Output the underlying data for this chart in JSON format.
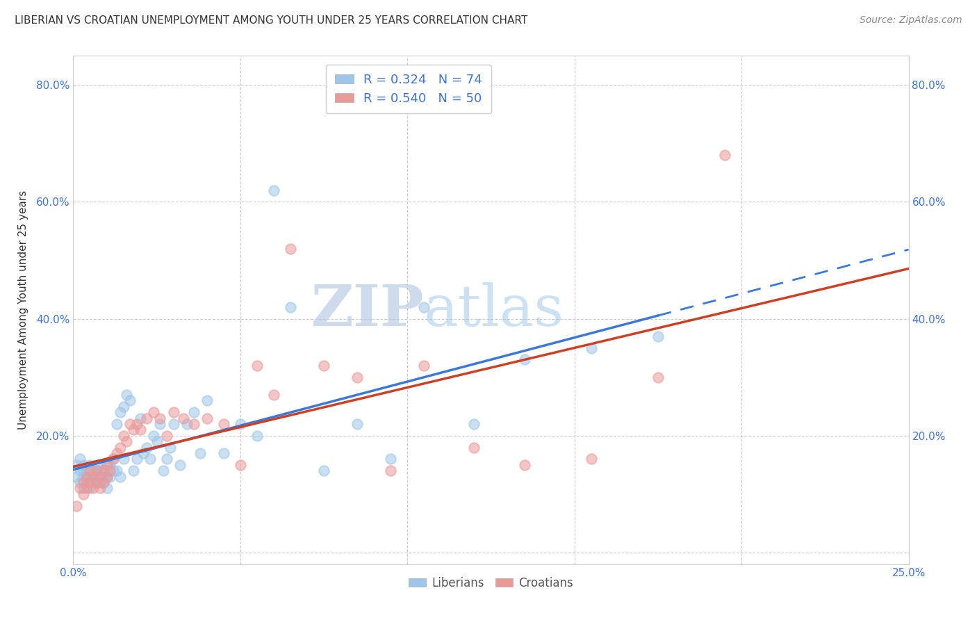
{
  "title": "LIBERIAN VS CROATIAN UNEMPLOYMENT AMONG YOUTH UNDER 25 YEARS CORRELATION CHART",
  "source": "Source: ZipAtlas.com",
  "ylabel": "Unemployment Among Youth under 25 years",
  "xlim": [
    0.0,
    0.25
  ],
  "ylim": [
    -0.02,
    0.85
  ],
  "liberian_R": 0.324,
  "liberian_N": 74,
  "croatian_R": 0.54,
  "croatian_N": 50,
  "liberian_color": "#9fc5e8",
  "croatian_color": "#ea9999",
  "liberian_line_color": "#3c78d8",
  "croatian_line_color": "#cc4125",
  "background_color": "#ffffff",
  "grid_color": "#cccccc",
  "title_fontsize": 11,
  "tick_fontsize": 11,
  "legend_fontsize": 13,
  "marker_size": 110,
  "liberian_x": [
    0.001,
    0.001,
    0.002,
    0.002,
    0.002,
    0.003,
    0.003,
    0.003,
    0.003,
    0.004,
    0.004,
    0.004,
    0.005,
    0.005,
    0.005,
    0.005,
    0.006,
    0.006,
    0.006,
    0.007,
    0.007,
    0.007,
    0.008,
    0.008,
    0.008,
    0.009,
    0.009,
    0.009,
    0.01,
    0.01,
    0.01,
    0.011,
    0.011,
    0.012,
    0.012,
    0.013,
    0.013,
    0.014,
    0.014,
    0.015,
    0.015,
    0.016,
    0.017,
    0.018,
    0.019,
    0.02,
    0.021,
    0.022,
    0.023,
    0.024,
    0.025,
    0.026,
    0.027,
    0.028,
    0.029,
    0.03,
    0.032,
    0.034,
    0.036,
    0.038,
    0.04,
    0.045,
    0.05,
    0.055,
    0.06,
    0.065,
    0.075,
    0.085,
    0.095,
    0.105,
    0.12,
    0.135,
    0.155,
    0.175
  ],
  "liberian_y": [
    0.15,
    0.13,
    0.14,
    0.12,
    0.16,
    0.13,
    0.15,
    0.11,
    0.14,
    0.12,
    0.14,
    0.13,
    0.15,
    0.12,
    0.13,
    0.11,
    0.13,
    0.14,
    0.12,
    0.14,
    0.12,
    0.13,
    0.14,
    0.12,
    0.15,
    0.13,
    0.12,
    0.14,
    0.13,
    0.15,
    0.11,
    0.15,
    0.13,
    0.16,
    0.14,
    0.22,
    0.14,
    0.24,
    0.13,
    0.16,
    0.25,
    0.27,
    0.26,
    0.14,
    0.16,
    0.23,
    0.17,
    0.18,
    0.16,
    0.2,
    0.19,
    0.22,
    0.14,
    0.16,
    0.18,
    0.22,
    0.15,
    0.22,
    0.24,
    0.17,
    0.26,
    0.17,
    0.22,
    0.2,
    0.62,
    0.42,
    0.14,
    0.22,
    0.16,
    0.42,
    0.22,
    0.33,
    0.35,
    0.37
  ],
  "croatian_x": [
    0.001,
    0.002,
    0.003,
    0.003,
    0.004,
    0.004,
    0.005,
    0.005,
    0.006,
    0.006,
    0.007,
    0.007,
    0.008,
    0.008,
    0.009,
    0.009,
    0.01,
    0.01,
    0.011,
    0.012,
    0.013,
    0.014,
    0.015,
    0.016,
    0.017,
    0.018,
    0.019,
    0.02,
    0.022,
    0.024,
    0.026,
    0.028,
    0.03,
    0.033,
    0.036,
    0.04,
    0.045,
    0.05,
    0.055,
    0.06,
    0.065,
    0.075,
    0.085,
    0.095,
    0.105,
    0.12,
    0.135,
    0.155,
    0.175,
    0.195
  ],
  "croatian_y": [
    0.08,
    0.11,
    0.1,
    0.12,
    0.11,
    0.13,
    0.12,
    0.14,
    0.11,
    0.13,
    0.12,
    0.14,
    0.11,
    0.13,
    0.12,
    0.14,
    0.13,
    0.15,
    0.14,
    0.16,
    0.17,
    0.18,
    0.2,
    0.19,
    0.22,
    0.21,
    0.22,
    0.21,
    0.23,
    0.24,
    0.23,
    0.2,
    0.24,
    0.23,
    0.22,
    0.23,
    0.22,
    0.15,
    0.32,
    0.27,
    0.52,
    0.32,
    0.3,
    0.14,
    0.32,
    0.18,
    0.15,
    0.16,
    0.3,
    0.68
  ]
}
